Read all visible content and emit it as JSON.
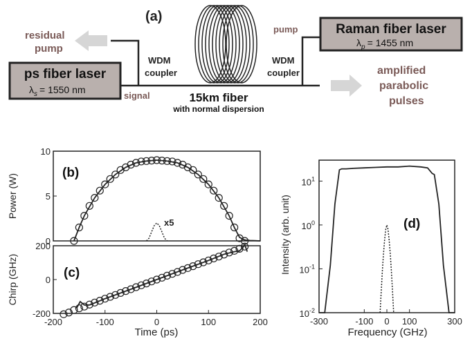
{
  "panel_a": {
    "label": "(a)",
    "residual_pump": [
      "residual",
      "pump"
    ],
    "ps_laser": {
      "title": "ps fiber laser",
      "lambda_symbol": "λ",
      "lambda_sub": "s",
      "lambda_value": "=  1550 nm"
    },
    "raman_laser": {
      "title": "Raman fiber laser",
      "lambda_symbol": "λ",
      "lambda_sub": "p",
      "lambda_value": "=  1455 nm"
    },
    "wdm_left": [
      "WDM",
      "coupler"
    ],
    "wdm_right": [
      "WDM",
      "coupler"
    ],
    "signal_label": "signal",
    "pump_label": "pump",
    "fiber_title": "15km fiber",
    "fiber_subtitle": "with normal dispersion",
    "output": [
      "amplified",
      "parabolic",
      "pulses"
    ],
    "colors": {
      "box_fill": "#b9b0ad",
      "arrow_fill": "#d6d6d6",
      "accent_text": "#7a5a57"
    }
  },
  "chart_data": [
    {
      "id": "b",
      "label": "(b)",
      "type": "line",
      "ylabel": "Power (W)",
      "xlim": [
        -200,
        200
      ],
      "ylim": [
        0,
        10
      ],
      "yticks": [
        0,
        5,
        10
      ],
      "annotation": "x5",
      "series": [
        {
          "style": "solid",
          "x": [
            -160,
            -150,
            -140,
            -120,
            -100,
            -80,
            -60,
            -40,
            -20,
            0,
            20,
            40,
            60,
            80,
            100,
            120,
            140,
            150,
            160,
            170,
            180,
            190,
            200
          ],
          "y": [
            0,
            1.5,
            2.8,
            4.8,
            6.3,
            7.4,
            8.2,
            8.7,
            8.9,
            9.0,
            8.9,
            8.7,
            8.2,
            7.4,
            6.3,
            4.8,
            2.8,
            1.5,
            0.4,
            0.1,
            0.05,
            0.03,
            0.0
          ]
        },
        {
          "style": "dashed",
          "x": [
            -20,
            -15,
            -10,
            -5,
            0,
            5,
            10,
            15,
            20
          ],
          "y": [
            0,
            0.3,
            1.0,
            1.7,
            2.0,
            1.7,
            1.0,
            0.3,
            0
          ]
        },
        {
          "style": "markers",
          "x": [
            -160,
            -150,
            -140,
            -130,
            -120,
            -110,
            -100,
            -90,
            -80,
            -70,
            -60,
            -50,
            -40,
            -30,
            -20,
            -10,
            0,
            10,
            20,
            30,
            40,
            50,
            60,
            70,
            80,
            90,
            100,
            110,
            120,
            130,
            140,
            150,
            160,
            170
          ],
          "y": [
            0,
            1.5,
            2.8,
            3.9,
            4.8,
            5.6,
            6.3,
            6.9,
            7.4,
            7.9,
            8.2,
            8.5,
            8.7,
            8.85,
            8.9,
            8.95,
            9.0,
            8.95,
            8.9,
            8.85,
            8.7,
            8.5,
            8.2,
            7.9,
            7.4,
            6.9,
            6.3,
            5.6,
            4.8,
            3.9,
            2.8,
            1.5,
            0.3,
            0
          ]
        }
      ]
    },
    {
      "id": "c",
      "label": "(c)",
      "type": "line",
      "xlabel": "Time (ps)",
      "ylabel": "Chirp (GHz)",
      "xlim": [
        -200,
        200
      ],
      "ylim": [
        -200,
        200
      ],
      "xticks": [
        -200,
        -100,
        0,
        100,
        200
      ],
      "yticks": [
        -200,
        0,
        200
      ],
      "series": [
        {
          "style": "solid",
          "x": [
            -155,
            -148,
            -140,
            -130,
            -100,
            -50,
            0,
            50,
            100,
            130,
            150,
            160,
            165,
            170,
            175
          ],
          "y": [
            -170,
            -130,
            -150,
            -150,
            -113,
            -57,
            0,
            57,
            113,
            150,
            165,
            170,
            185,
            205,
            165
          ]
        },
        {
          "style": "markers",
          "x": [
            -180,
            -170,
            -160,
            -150,
            -140,
            -130,
            -120,
            -110,
            -100,
            -90,
            -80,
            -70,
            -60,
            -50,
            -40,
            -30,
            -20,
            -10,
            0,
            10,
            20,
            30,
            40,
            50,
            60,
            70,
            80,
            90,
            100,
            110,
            120,
            130,
            140,
            150,
            160,
            170
          ],
          "y": [
            -205,
            -195,
            -180,
            -170,
            -160,
            -148,
            -136,
            -125,
            -113,
            -102,
            -91,
            -79,
            -68,
            -57,
            -45,
            -34,
            -23,
            -11,
            0,
            11,
            23,
            34,
            45,
            57,
            68,
            79,
            91,
            102,
            113,
            125,
            136,
            148,
            160,
            170,
            182,
            195
          ]
        }
      ]
    },
    {
      "id": "d",
      "label": "(d)",
      "type": "line",
      "xlabel": "Frequency (GHz)",
      "ylabel": "Intensity (arb. unit)",
      "yscale": "log",
      "xlim": [
        -300,
        300
      ],
      "ylim": [
        0.01,
        30
      ],
      "xticks": [
        -300,
        -100,
        0,
        100,
        300
      ],
      "xtick_labels": [
        "-300",
        "-100",
        "0",
        "100",
        "300"
      ],
      "ytick_labels": [
        {
          "value": 10,
          "base": "10",
          "exp": "1"
        },
        {
          "value": 1,
          "base": "10",
          "exp": "0"
        },
        {
          "value": 0.1,
          "base": "10",
          "exp": "-1"
        },
        {
          "value": 0.01,
          "base": "10",
          "exp": "-2"
        }
      ],
      "series": [
        {
          "style": "solid",
          "x": [
            -300,
            -275,
            -250,
            -230,
            -210,
            -200,
            -180,
            -150,
            -100,
            -50,
            0,
            50,
            100,
            150,
            180,
            200,
            210,
            230,
            250,
            275,
            300
          ],
          "y": [
            0.01,
            0.01,
            0.12,
            3,
            18,
            19,
            19,
            19.5,
            20,
            20.5,
            21,
            21,
            22,
            21,
            20,
            15,
            14,
            3,
            0.12,
            0.01,
            0.01
          ]
        },
        {
          "style": "dashed",
          "x": [
            -30,
            -25,
            -20,
            -15,
            -10,
            -5,
            0,
            5,
            10,
            15,
            20,
            25,
            30
          ],
          "y": [
            0.01,
            0.03,
            0.09,
            0.22,
            0.45,
            0.8,
            1.0,
            0.8,
            0.45,
            0.22,
            0.09,
            0.03,
            0.01
          ]
        }
      ]
    }
  ]
}
